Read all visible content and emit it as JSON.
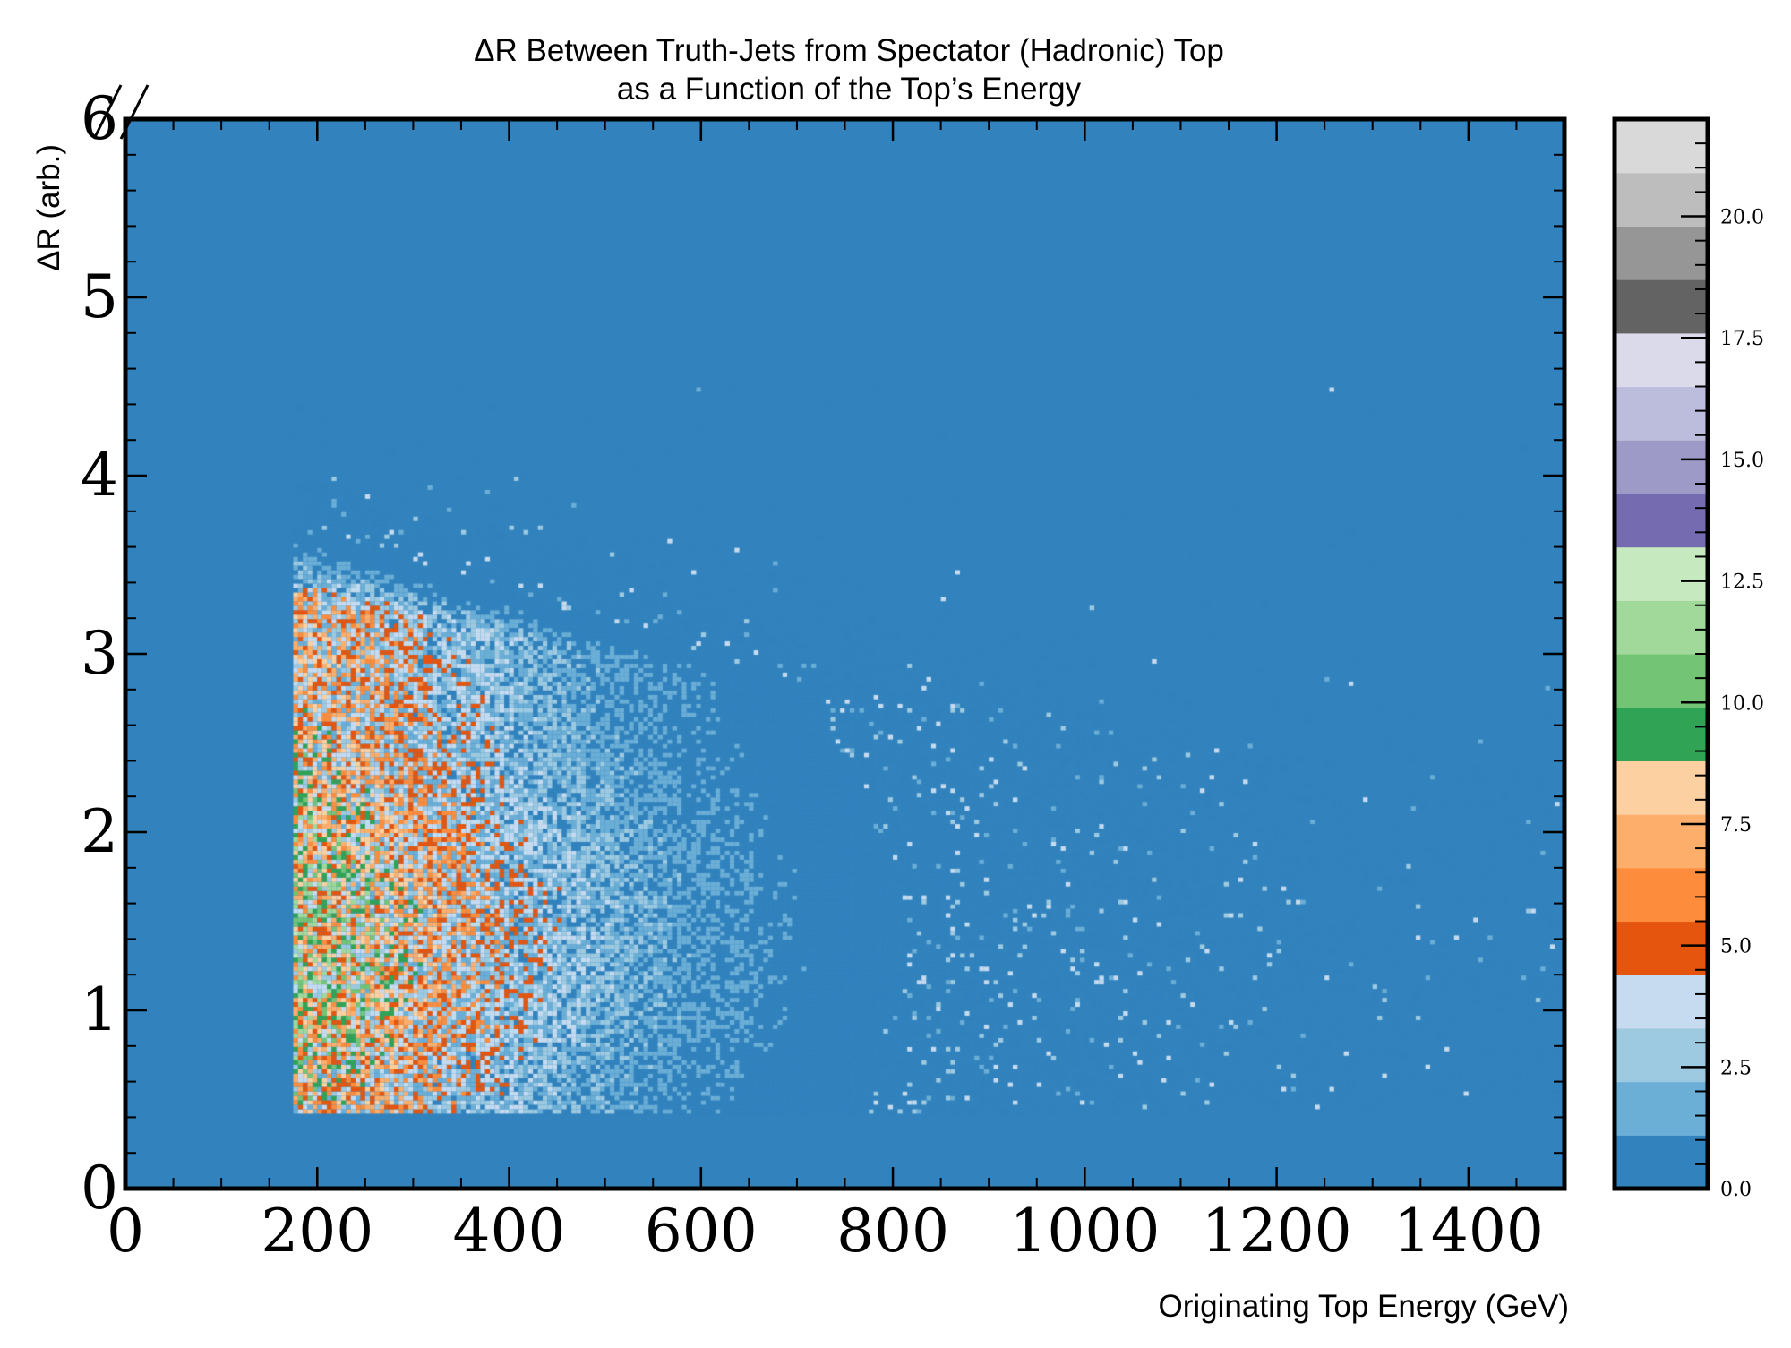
{
  "chart_data": {
    "type": "heatmap",
    "title": "ΔR Between Truth-Jets from Spectator (Hadronic) Top",
    "subtitle": "as a Function of the Top’s Energy",
    "xlabel": "Originating Top Energy (GeV)",
    "ylabel": "ΔR (arb.)",
    "xlim": [
      0,
      1500
    ],
    "ylim": [
      0,
      6
    ],
    "x_ticks": [
      0,
      200,
      400,
      600,
      800,
      1000,
      1200,
      1400
    ],
    "y_ticks": [
      0,
      1,
      2,
      3,
      4,
      5,
      6
    ],
    "x_tick_labels": [
      "0",
      "200",
      "400",
      "600",
      "800",
      "1000",
      "1200",
      "1400"
    ],
    "y_tick_labels": [
      "0",
      "1",
      "2",
      "3",
      "4",
      "5",
      "6"
    ],
    "x_bin_width": 5,
    "y_bin_width": 0.025,
    "colorbar": {
      "range": [
        0,
        22
      ],
      "tick_values": [
        0,
        2.5,
        5,
        7.5,
        10,
        12.5,
        15,
        17.5,
        20
      ],
      "tick_labels": [
        "0.0",
        "2.5",
        "5.0",
        "7.5",
        "10.0",
        "12.5",
        "15.0",
        "17.5",
        "20.0"
      ],
      "colors": [
        "#3182bd",
        "#6baed6",
        "#9ecae1",
        "#c6dbef",
        "#e6550d",
        "#fd8d3c",
        "#fdae6b",
        "#fdd0a2",
        "#31a354",
        "#74c476",
        "#a1d99b",
        "#c7e9c0",
        "#756bb1",
        "#9e9ac8",
        "#bcbddc",
        "#dadaeb",
        "#636363",
        "#969696",
        "#bdbdbd",
        "#d9d9d9"
      ]
    },
    "distribution": {
      "min_energy": 175,
      "min_delta_r": 0.42,
      "peak_energy": 250,
      "peak_delta_r": 1.4,
      "max_delta_r_observed": 4.5,
      "max_count": 13
    }
  }
}
